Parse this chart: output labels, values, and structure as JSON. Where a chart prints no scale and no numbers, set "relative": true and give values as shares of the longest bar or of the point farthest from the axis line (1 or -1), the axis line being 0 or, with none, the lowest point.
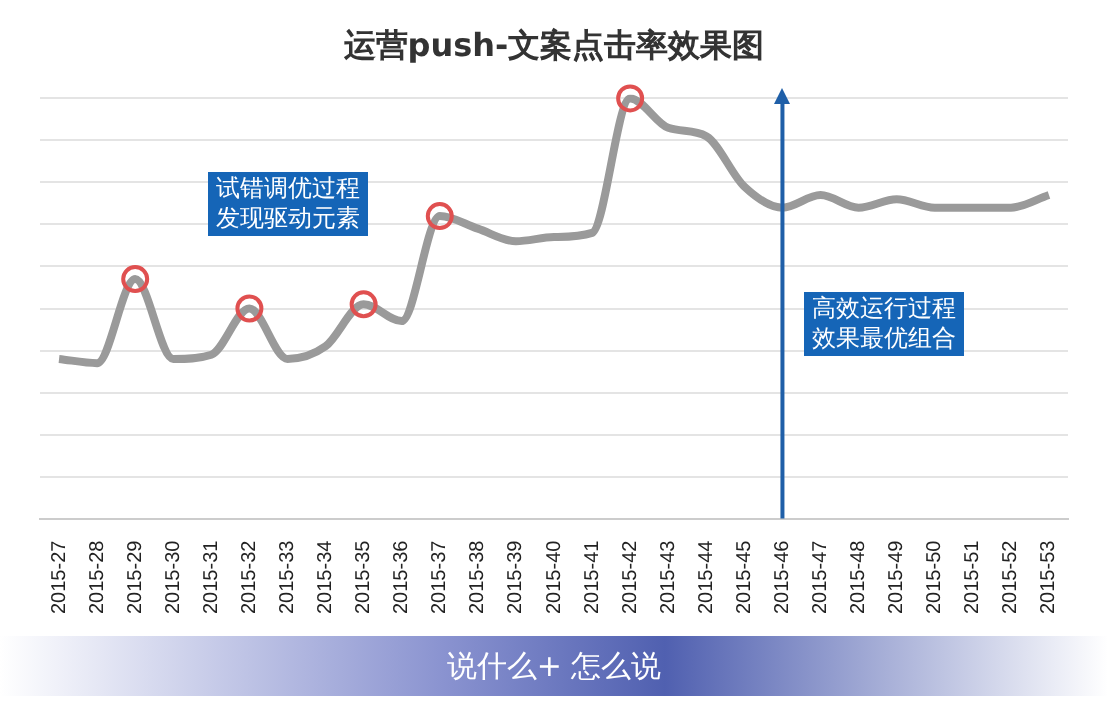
{
  "chart_data": {
    "type": "line",
    "title": "运营push-文案点击率效果图",
    "relative": true,
    "grid": "y",
    "legend": false,
    "categories": [
      "2015-27",
      "2015-28",
      "2015-29",
      "2015-30",
      "2015-31",
      "2015-32",
      "2015-33",
      "2015-34",
      "2015-35",
      "2015-36",
      "2015-37",
      "2015-38",
      "2015-39",
      "2015-40",
      "2015-41",
      "2015-42",
      "2015-43",
      "2015-44",
      "2015-45",
      "2015-46",
      "2015-47",
      "2015-48",
      "2015-49",
      "2015-50",
      "2015-51",
      "2015-52",
      "2015-53"
    ],
    "series": [
      {
        "color": "#9a9a9a",
        "marker": "none",
        "values": [
          0.38,
          0.37,
          0.57,
          0.38,
          0.39,
          0.5,
          0.38,
          0.41,
          0.51,
          0.47,
          0.72,
          0.69,
          0.66,
          0.67,
          0.68,
          1,
          0.93,
          0.91,
          0.79,
          0.74,
          0.77,
          0.74,
          0.76,
          0.74,
          0.74,
          0.74,
          0.77
        ]
      },
      {
        "type": "scatter",
        "color": "#e05050",
        "marker": "circle",
        "x": [
          "2015-29",
          "2015-32",
          "2015-35",
          "2015-37",
          "2015-42"
        ],
        "values": [
          0.57,
          0.5,
          0.51,
          0.72,
          1
        ]
      }
    ],
    "ref_lines": [
      {
        "axis": "x",
        "value": "2015-46",
        "color": "#1f5fa8"
      }
    ],
    "annotations": [
      "试错调优过程发现驱动元素",
      "高效运行过程效果最优组合",
      "说什么+ 怎么说"
    ]
  }
}
